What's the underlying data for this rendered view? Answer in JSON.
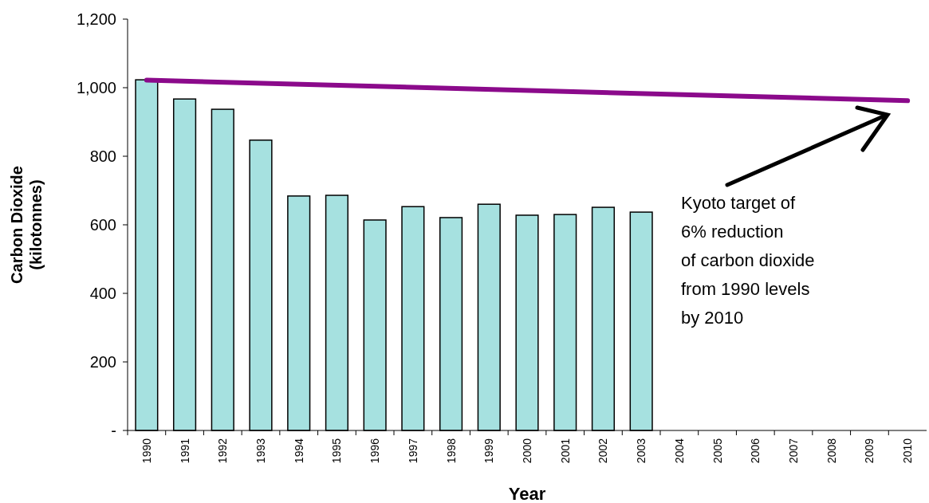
{
  "chart_data": {
    "type": "bar",
    "xlabel": "Year",
    "ylabel": "Carbon Dioxide\n(kilotonnes)",
    "categories": [
      "1990",
      "1991",
      "1992",
      "1993",
      "1994",
      "1995",
      "1996",
      "1997",
      "1998",
      "1999",
      "2000",
      "2001",
      "2002",
      "2003",
      "2004",
      "2005",
      "2006",
      "2007",
      "2008",
      "2009",
      "2010"
    ],
    "series": [
      {
        "color": "#a6e1e0",
        "values": [
          1023,
          967,
          937,
          847,
          684,
          686,
          614,
          653,
          621,
          660,
          628,
          630,
          651,
          637,
          null,
          null,
          null,
          null,
          null,
          null,
          null
        ]
      },
      {
        "type": "line",
        "color": "#8b0a8b",
        "values": [
          1022,
          null,
          null,
          null,
          null,
          null,
          null,
          null,
          null,
          null,
          null,
          null,
          null,
          null,
          null,
          null,
          null,
          null,
          null,
          null,
          962
        ]
      }
    ],
    "ylim": [
      0,
      1200
    ],
    "yticks": [
      {
        "value": 0,
        "label": "-"
      },
      200,
      400,
      600,
      800,
      {
        "value": 1000,
        "label": "1,000"
      },
      {
        "value": 1200,
        "label": "1,200"
      }
    ],
    "grid": false,
    "marker": "none",
    "line_style": "solid",
    "annotations": [
      "Kyoto target of\n6% reduction\nof carbon dioxide\nfrom 1990 levels\nby 2010"
    ]
  }
}
